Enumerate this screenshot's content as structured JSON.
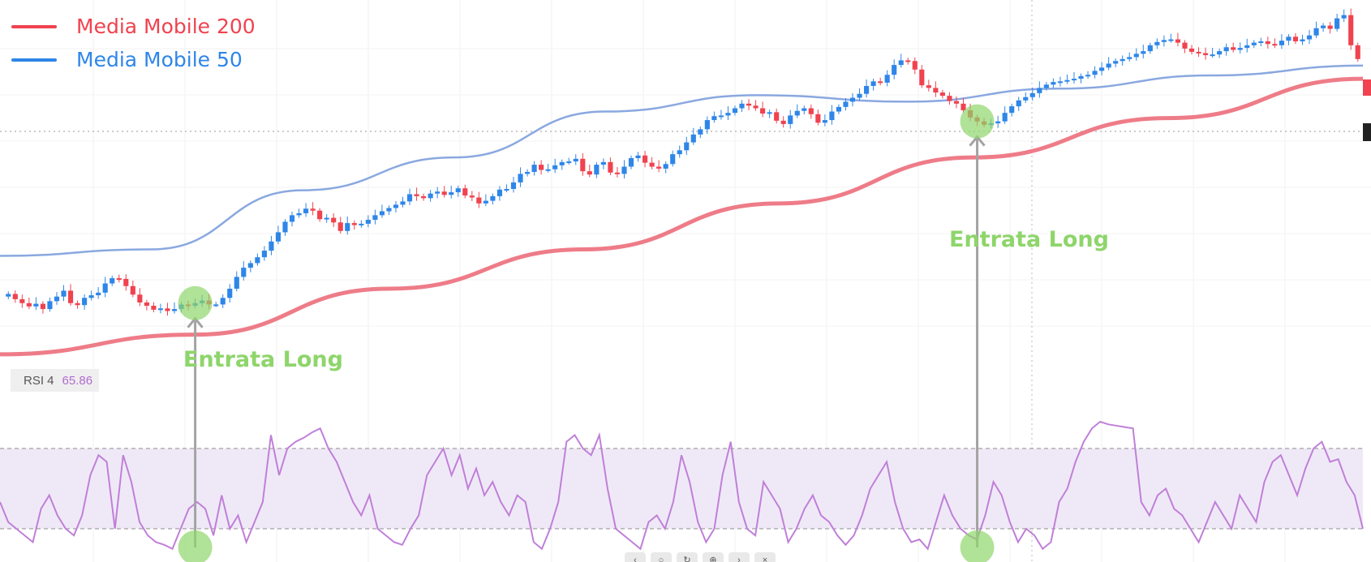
{
  "legend": {
    "ma200": {
      "label": "Media Mobile 200",
      "color": "#f0424f"
    },
    "ma50": {
      "label": "Media Mobile 50",
      "color": "#2e86e8"
    }
  },
  "rsi": {
    "name": "RSI 4",
    "value": "65.86",
    "color": "#b26bd0"
  },
  "annotations": [
    {
      "label": "Entrata Long",
      "icon": "entry-arrow-up"
    },
    {
      "label": "Entrata Long",
      "icon": "entry-arrow-up"
    }
  ],
  "controls": [
    {
      "icon": "chevron-left-icon"
    },
    {
      "icon": "zoom-out-icon"
    },
    {
      "icon": "reset-icon"
    },
    {
      "icon": "zoom-in-icon"
    },
    {
      "icon": "chevron-right-icon"
    },
    {
      "icon": "close-icon"
    }
  ],
  "chart_data": {
    "type": "candlestick",
    "colors": {
      "up": "#2e86e8",
      "down": "#f0424f",
      "rsi": "#c07fd8",
      "entry": "#8ed56b"
    },
    "candle_closes": [
      262,
      254,
      248,
      243,
      247,
      239,
      251,
      258,
      267,
      248,
      245,
      256,
      260,
      264,
      278,
      286,
      285,
      274,
      261,
      249,
      244,
      238,
      240,
      236,
      239,
      246,
      244,
      248,
      252,
      246,
      246,
      256,
      270,
      288,
      302,
      309,
      318,
      328,
      342,
      356,
      372,
      382,
      385,
      392,
      389,
      376,
      378,
      371,
      358,
      370,
      367,
      369,
      375,
      382,
      388,
      393,
      398,
      403,
      414,
      411,
      408,
      415,
      418,
      413,
      417,
      423,
      412,
      409,
      400,
      404,
      411,
      421,
      422,
      432,
      445,
      448,
      459,
      451,
      452,
      458,
      463,
      464,
      468,
      449,
      444,
      459,
      463,
      447,
      445,
      456,
      469,
      473,
      462,
      456,
      453,
      460,
      475,
      481,
      493,
      505,
      513,
      527,
      533,
      534,
      538,
      545,
      552,
      549,
      545,
      537,
      539,
      526,
      521,
      534,
      541,
      545,
      536,
      523,
      527,
      540,
      547,
      555,
      561,
      567,
      579,
      586,
      584,
      596,
      611,
      618,
      617,
      604,
      580,
      576,
      569,
      564,
      556,
      552,
      542,
      531,
      525,
      520,
      522,
      525,
      538,
      548,
      557,
      562,
      568,
      576,
      581,
      585,
      586,
      588,
      590,
      594,
      596,
      602,
      607,
      613,
      617,
      620,
      623,
      628,
      632,
      641,
      646,
      649,
      650,
      645,
      636,
      631,
      629,
      626,
      627,
      632,
      638,
      634,
      637,
      641,
      645,
      647,
      643,
      641,
      648,
      654,
      647,
      650,
      656,
      667,
      671,
      666,
      682,
      687,
      641,
      620
    ],
    "ma50": [
      320,
      330,
      420,
      470,
      540,
      565,
      555,
      575,
      595,
      610
    ],
    "ma200": [
      170,
      200,
      270,
      330,
      400,
      470,
      530,
      590
    ],
    "price_ylim": [
      160,
      710
    ],
    "rsi_values": [
      40,
      25,
      20,
      15,
      10,
      35,
      45,
      30,
      20,
      15,
      30,
      60,
      75,
      70,
      20,
      75,
      55,
      25,
      15,
      10,
      8,
      5,
      20,
      35,
      40,
      35,
      15,
      45,
      20,
      30,
      10,
      25,
      40,
      90,
      60,
      80,
      85,
      88,
      92,
      95,
      80,
      70,
      55,
      40,
      30,
      45,
      20,
      15,
      10,
      8,
      20,
      30,
      60,
      70,
      80,
      60,
      75,
      50,
      65,
      45,
      55,
      40,
      30,
      45,
      40,
      10,
      5,
      20,
      40,
      85,
      90,
      80,
      75,
      90,
      50,
      20,
      15,
      10,
      5,
      25,
      30,
      20,
      40,
      75,
      55,
      25,
      10,
      20,
      60,
      85,
      40,
      20,
      15,
      55,
      45,
      35,
      10,
      20,
      35,
      45,
      30,
      25,
      15,
      8,
      15,
      30,
      50,
      60,
      70,
      40,
      20,
      10,
      12,
      5,
      25,
      45,
      30,
      20,
      15,
      12,
      30,
      55,
      45,
      25,
      10,
      20,
      15,
      5,
      10,
      40,
      50,
      70,
      85,
      95,
      100,
      98,
      97,
      96,
      95,
      40,
      30,
      45,
      50,
      35,
      30,
      20,
      10,
      25,
      40,
      30,
      20,
      45,
      35,
      25,
      55,
      70,
      75,
      60,
      45,
      65,
      80,
      85,
      70,
      72,
      55,
      45,
      20
    ],
    "rsi_ylim": [
      0,
      100
    ],
    "rsi_bands": [
      20,
      80
    ],
    "entries": [
      {
        "candle_index": 27
      },
      {
        "candle_index": 140
      }
    ]
  }
}
